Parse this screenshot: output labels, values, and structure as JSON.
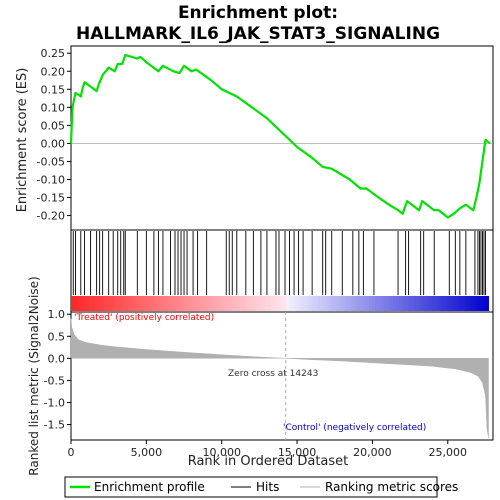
{
  "chart_data": {
    "type": "line",
    "title_line1": "Enrichment plot:",
    "title_line2": "HALLMARK_IL6_JAK_STAT3_SIGNALING",
    "ylabel_top": "Enrichment score (ES)",
    "ylabel_bottom": "Ranked list metric (Signal2Noise)",
    "xlabel": "Rank in Ordered Dataset",
    "xlim": [
      0,
      28000
    ],
    "es_ylim": [
      -0.24,
      0.27
    ],
    "metric_ylim": [
      -1.85,
      1.05
    ],
    "x_ticks": [
      "0",
      "5,000",
      "10,000",
      "15,000",
      "20,000",
      "25,000"
    ],
    "x_tick_values": [
      0,
      5000,
      10000,
      15000,
      20000,
      25000
    ],
    "es_ticks": [
      "0.25",
      "0.20",
      "0.15",
      "0.10",
      "0.05",
      "0.00",
      "-0.05",
      "-0.10",
      "-0.15",
      "-0.20"
    ],
    "es_tick_values": [
      0.25,
      0.2,
      0.15,
      0.1,
      0.05,
      0.0,
      -0.05,
      -0.1,
      -0.15,
      -0.2
    ],
    "metric_ticks": [
      "1.0",
      "0.5",
      "0.0",
      "-0.5",
      "-1.0",
      "-1.5"
    ],
    "metric_tick_values": [
      1.0,
      0.5,
      0.0,
      -0.5,
      -1.0,
      -1.5
    ],
    "zero_cross_rank": 14243,
    "zero_cross_label": "Zero cross at 14243",
    "treated_label": "'Treated' (positively correlated)",
    "control_label": "'Control' (negatively correlated)",
    "legend": [
      "Enrichment profile",
      "Hits",
      "Ranking metric scores"
    ],
    "colors": {
      "profile": "#00e000",
      "hits": "#000000",
      "metric": "#b0b0b0",
      "treated": "#ff0000",
      "control": "#0000cc"
    },
    "es_profile": [
      [
        0,
        0.0
      ],
      [
        100,
        0.1
      ],
      [
        300,
        0.14
      ],
      [
        650,
        0.13
      ],
      [
        750,
        0.15
      ],
      [
        900,
        0.17
      ],
      [
        1700,
        0.145
      ],
      [
        1850,
        0.165
      ],
      [
        2100,
        0.19
      ],
      [
        2500,
        0.21
      ],
      [
        2900,
        0.2
      ],
      [
        3100,
        0.22
      ],
      [
        3400,
        0.22
      ],
      [
        3600,
        0.245
      ],
      [
        4400,
        0.235
      ],
      [
        4600,
        0.24
      ],
      [
        5000,
        0.225
      ],
      [
        5800,
        0.2
      ],
      [
        6100,
        0.215
      ],
      [
        6800,
        0.2
      ],
      [
        7200,
        0.195
      ],
      [
        7500,
        0.215
      ],
      [
        8000,
        0.2
      ],
      [
        8300,
        0.205
      ],
      [
        9300,
        0.175
      ],
      [
        10000,
        0.15
      ],
      [
        10500,
        0.14
      ],
      [
        11000,
        0.13
      ],
      [
        12000,
        0.1
      ],
      [
        13000,
        0.07
      ],
      [
        14000,
        0.03
      ],
      [
        15000,
        -0.01
      ],
      [
        16000,
        -0.04
      ],
      [
        16700,
        -0.065
      ],
      [
        17300,
        -0.07
      ],
      [
        18500,
        -0.1
      ],
      [
        19200,
        -0.125
      ],
      [
        19600,
        -0.125
      ],
      [
        20400,
        -0.15
      ],
      [
        21100,
        -0.17
      ],
      [
        21700,
        -0.185
      ],
      [
        22000,
        -0.195
      ],
      [
        22300,
        -0.16
      ],
      [
        23100,
        -0.185
      ],
      [
        23300,
        -0.16
      ],
      [
        24100,
        -0.185
      ],
      [
        24400,
        -0.185
      ],
      [
        25000,
        -0.205
      ],
      [
        25400,
        -0.195
      ],
      [
        25800,
        -0.18
      ],
      [
        26200,
        -0.17
      ],
      [
        26700,
        -0.185
      ],
      [
        26900,
        -0.15
      ],
      [
        27100,
        -0.11
      ],
      [
        27300,
        -0.05
      ],
      [
        27500,
        0.01
      ],
      [
        27800,
        0.0
      ]
    ],
    "hit_ranks": [
      150,
      300,
      650,
      900,
      1300,
      1700,
      1900,
      2100,
      2500,
      2800,
      3100,
      3300,
      3500,
      3600,
      4400,
      5000,
      5500,
      5800,
      6100,
      6600,
      6900,
      7100,
      7300,
      7500,
      7700,
      8100,
      8400,
      9000,
      10300,
      10500,
      10700,
      11000,
      11600,
      12100,
      12600,
      13000,
      13600,
      13800,
      14200,
      14500,
      14800,
      15100,
      15400,
      16000,
      16700,
      16900,
      17300,
      18000,
      18700,
      19100,
      19400,
      20100,
      21700,
      22200,
      22400,
      23200,
      23400,
      24100,
      25100,
      25500,
      25800,
      26200,
      26800,
      27000,
      27100,
      27200,
      27300,
      27400,
      27500
    ],
    "metric_curve": [
      [
        0,
        0.9
      ],
      [
        50,
        0.7
      ],
      [
        200,
        0.55
      ],
      [
        500,
        0.42
      ],
      [
        1000,
        0.36
      ],
      [
        2000,
        0.3
      ],
      [
        3000,
        0.26
      ],
      [
        5000,
        0.2
      ],
      [
        7000,
        0.15
      ],
      [
        10000,
        0.08
      ],
      [
        12000,
        0.04
      ],
      [
        14243,
        0.0
      ],
      [
        16000,
        -0.03
      ],
      [
        18000,
        -0.06
      ],
      [
        20000,
        -0.1
      ],
      [
        22000,
        -0.14
      ],
      [
        24000,
        -0.18
      ],
      [
        25500,
        -0.24
      ],
      [
        26500,
        -0.32
      ],
      [
        27000,
        -0.4
      ],
      [
        27300,
        -0.55
      ],
      [
        27500,
        -0.85
      ],
      [
        27600,
        -1.6
      ],
      [
        27700,
        -1.8
      ]
    ]
  }
}
